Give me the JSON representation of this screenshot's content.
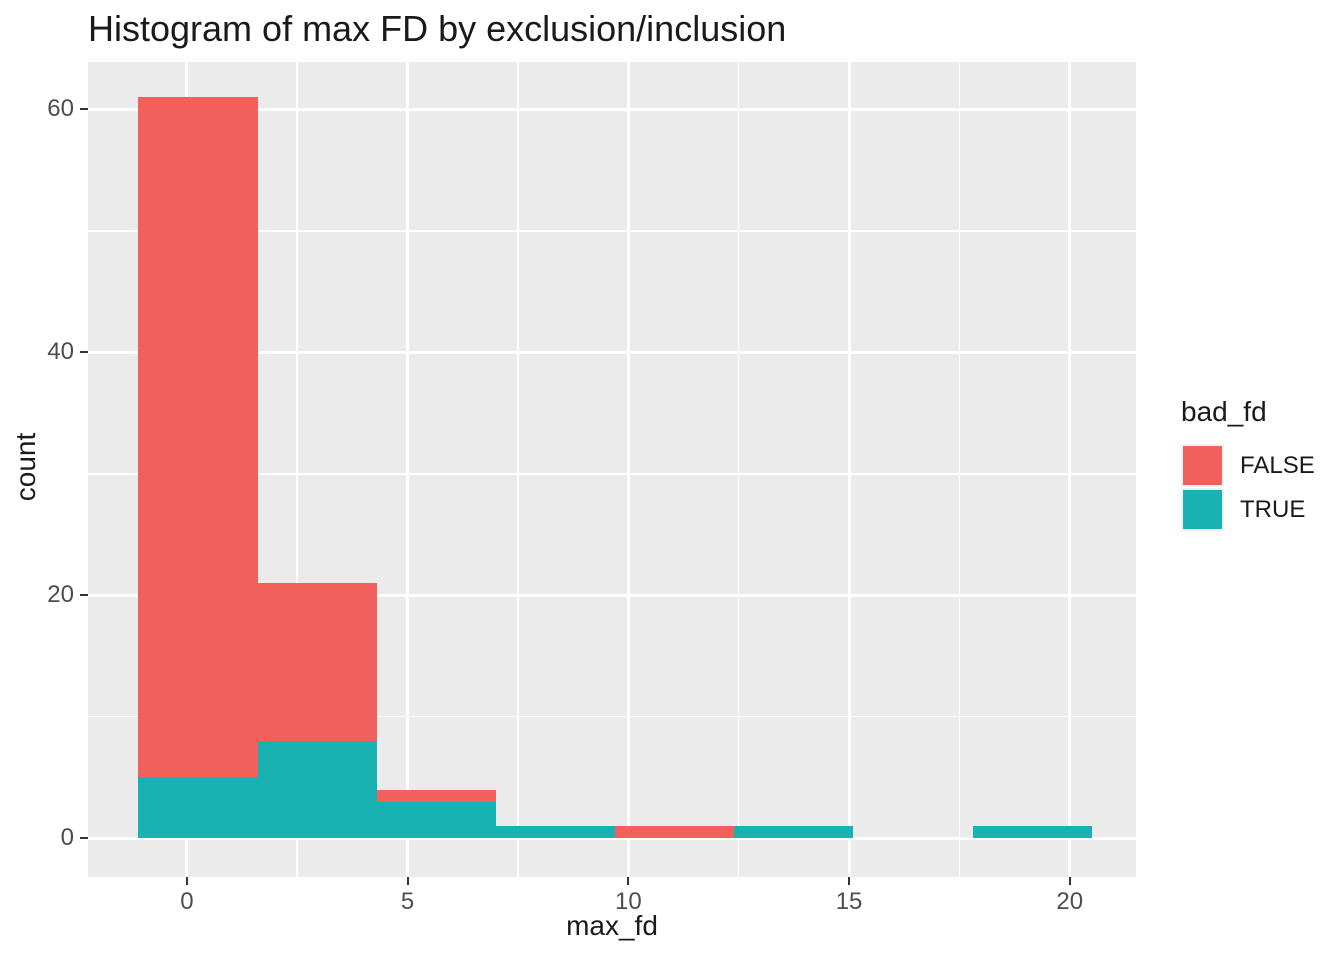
{
  "title": "Histogram of max FD by exclusion/inclusion",
  "legend": {
    "title": "bad_fd",
    "items": [
      {
        "label": "FALSE",
        "color": "#F2605C"
      },
      {
        "label": "TRUE",
        "color": "#19B2B2"
      }
    ]
  },
  "chart_data": {
    "type": "bar",
    "subtype": "stacked-histogram",
    "title": "Histogram of max FD by exclusion/inclusion",
    "xlabel": "max_fd",
    "ylabel": "count",
    "legend_title": "bad_fd",
    "legend_position": "right",
    "bin_edges": [
      -1.1,
      1.6,
      4.3,
      7.0,
      9.7,
      12.4,
      15.1,
      17.8,
      20.5
    ],
    "series": [
      {
        "name": "FALSE",
        "color": "#F2605C",
        "values": [
          56,
          13,
          1,
          0,
          1,
          0,
          0,
          0
        ]
      },
      {
        "name": "TRUE",
        "color": "#19B2B2",
        "values": [
          5,
          8,
          3,
          1,
          0,
          1,
          0,
          1
        ]
      }
    ],
    "stack_order_bottom_to_top": [
      "TRUE",
      "FALSE"
    ],
    "bin_totals": [
      61,
      21,
      4,
      1,
      1,
      1,
      0,
      1
    ],
    "x_ticks": [
      0,
      5,
      10,
      15,
      20
    ],
    "y_ticks": [
      0,
      20,
      40,
      60
    ],
    "x_minor_gridlines": [
      2.5,
      7.5,
      12.5,
      17.5
    ],
    "y_minor_gridlines": [
      10,
      30,
      50
    ],
    "xlim": [
      -2.24,
      21.5
    ],
    "ylim": [
      -3.2,
      63.9
    ],
    "grid": true,
    "panel_background": "#EBEBEB",
    "gridline_color": "#FFFFFF",
    "tick_color": "#333333",
    "tick_label_color": "#4d4d4d"
  }
}
